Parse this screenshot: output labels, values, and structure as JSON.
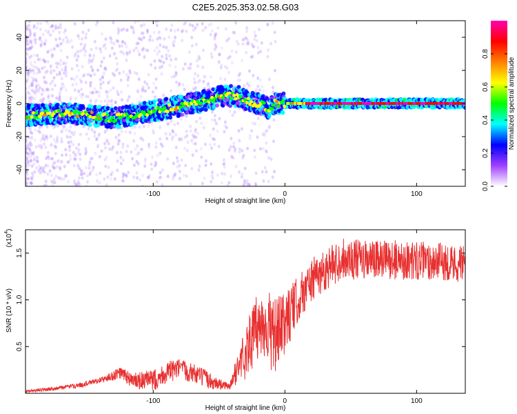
{
  "title": "C2E5.2025.353.02.58.G03",
  "chart_data": [
    {
      "type": "heatmap",
      "name": "spectrogram",
      "xlabel": "Height of straight line (km)",
      "ylabel": "Frequency (Hz)",
      "xlim": [
        -197,
        137
      ],
      "ylim": [
        -50,
        50
      ],
      "xticks": [
        -100,
        0,
        100
      ],
      "xtick_labels": [
        "-100",
        "0",
        "100"
      ],
      "yticks": [
        -40,
        -20,
        0,
        20,
        40
      ],
      "ytick_labels": [
        "-40",
        "-20",
        "0",
        "20",
        "40"
      ],
      "colorbar": {
        "label": "Normalized spectral amplitude",
        "range": [
          0,
          1
        ],
        "ticks": [
          0.0,
          0.2,
          0.4,
          0.6,
          0.8
        ],
        "tick_labels": [
          "0.0",
          "0.2",
          "0.4",
          "0.6",
          "0.8"
        ],
        "colors": [
          "#ffffff",
          "#a040ff",
          "#0000ff",
          "#00ffff",
          "#00ff00",
          "#ffff00",
          "#ff8000",
          "#ff0000",
          "#ff00b0"
        ]
      },
      "ridge_centerline": [
        {
          "x": -195,
          "y": -7
        },
        {
          "x": -170,
          "y": -6
        },
        {
          "x": -150,
          "y": -7
        },
        {
          "x": -130,
          "y": -9
        },
        {
          "x": -110,
          "y": -6
        },
        {
          "x": -90,
          "y": -3
        },
        {
          "x": -70,
          "y": 0
        },
        {
          "x": -55,
          "y": 3
        },
        {
          "x": -45,
          "y": 5
        },
        {
          "x": -35,
          "y": 4
        },
        {
          "x": -28,
          "y": 1
        },
        {
          "x": -20,
          "y": 0
        },
        {
          "x": -12,
          "y": -3
        },
        {
          "x": -8,
          "y": 0
        },
        {
          "x": 0,
          "y": 0
        },
        {
          "x": 137,
          "y": 0
        }
      ]
    },
    {
      "type": "line",
      "name": "snr",
      "xlabel": "Height of straight line (km)",
      "ylabel": "SNR (10 * v/v)",
      "multiplier": "(x10",
      "multiplier_exp": "4",
      "multiplier_close": ")",
      "xlim": [
        -197,
        137
      ],
      "ylim": [
        0,
        1.75
      ],
      "xticks": [
        -100,
        0,
        100
      ],
      "xtick_labels": [
        "-100",
        "0",
        "100"
      ],
      "yticks": [
        0.5,
        1.0,
        1.5
      ],
      "ytick_labels": [
        "0.5",
        "1.0",
        "1.5"
      ],
      "series": [
        {
          "name": "SNR",
          "color": "#e83030",
          "envelope": [
            {
              "x": -197,
              "y": 0.02
            },
            {
              "x": -175,
              "y": 0.05
            },
            {
              "x": -155,
              "y": 0.09
            },
            {
              "x": -135,
              "y": 0.16
            },
            {
              "x": -125,
              "y": 0.22
            },
            {
              "x": -115,
              "y": 0.13
            },
            {
              "x": -100,
              "y": 0.14
            },
            {
              "x": -90,
              "y": 0.22
            },
            {
              "x": -80,
              "y": 0.26
            },
            {
              "x": -70,
              "y": 0.22
            },
            {
              "x": -55,
              "y": 0.12
            },
            {
              "x": -42,
              "y": 0.07
            },
            {
              "x": -35,
              "y": 0.3
            },
            {
              "x": -28,
              "y": 0.5
            },
            {
              "x": -22,
              "y": 0.68
            },
            {
              "x": -15,
              "y": 0.75
            },
            {
              "x": -8,
              "y": 0.6
            },
            {
              "x": 0,
              "y": 0.75
            },
            {
              "x": 5,
              "y": 0.88
            },
            {
              "x": 12,
              "y": 1.05
            },
            {
              "x": 20,
              "y": 1.2
            },
            {
              "x": 30,
              "y": 1.32
            },
            {
              "x": 45,
              "y": 1.45
            },
            {
              "x": 60,
              "y": 1.42
            },
            {
              "x": 80,
              "y": 1.43
            },
            {
              "x": 100,
              "y": 1.42
            },
            {
              "x": 120,
              "y": 1.41
            },
            {
              "x": 137,
              "y": 1.38
            }
          ],
          "noise": [
            {
              "x": -197,
              "a": 0.015
            },
            {
              "x": -140,
              "a": 0.03
            },
            {
              "x": -120,
              "a": 0.08
            },
            {
              "x": -95,
              "a": 0.12
            },
            {
              "x": -60,
              "a": 0.1
            },
            {
              "x": -42,
              "a": 0.03
            },
            {
              "x": -30,
              "a": 0.3
            },
            {
              "x": -10,
              "a": 0.42
            },
            {
              "x": 10,
              "a": 0.25
            },
            {
              "x": 40,
              "a": 0.22
            },
            {
              "x": 137,
              "a": 0.2
            }
          ]
        }
      ]
    }
  ]
}
